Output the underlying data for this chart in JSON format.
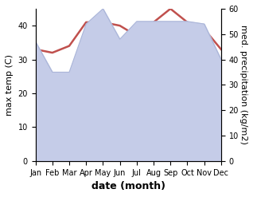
{
  "months": [
    "Jan",
    "Feb",
    "Mar",
    "Apr",
    "May",
    "Jun",
    "Jul",
    "Aug",
    "Sep",
    "Oct",
    "Nov",
    "Dec"
  ],
  "x": [
    0,
    1,
    2,
    3,
    4,
    5,
    6,
    7,
    8,
    9,
    10,
    11
  ],
  "temperature": [
    33,
    32,
    34,
    41,
    41,
    40,
    37,
    41,
    45,
    41,
    39,
    33
  ],
  "precipitation": [
    47,
    35,
    35,
    54,
    60,
    48,
    55,
    55,
    55,
    55,
    54,
    40
  ],
  "temp_color": "#c0504d",
  "precip_fill_color": "#c5cce8",
  "precip_line_color": "#aab5d8",
  "temp_ylim": [
    0,
    45
  ],
  "precip_ylim": [
    0,
    60
  ],
  "ylabel_left": "max temp (C)",
  "ylabel_right": "med. precipitation (kg/m2)",
  "xlabel": "date (month)",
  "bg_color": "#ffffff",
  "temp_linewidth": 1.8,
  "precip_linewidth": 0.8,
  "tick_fontsize": 7,
  "label_fontsize": 8,
  "xlabel_fontsize": 9
}
